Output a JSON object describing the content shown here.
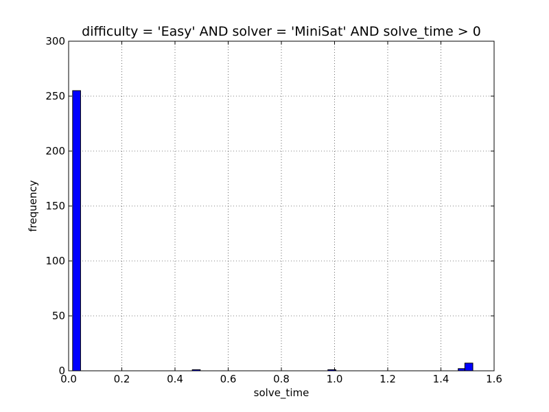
{
  "chart_data": {
    "type": "histogram",
    "title": "difficulty = 'Easy' AND solver = 'MiniSat' AND solve_time > 0",
    "xlabel": "solve_time",
    "ylabel": "frequency",
    "xlim": [
      0,
      1.6
    ],
    "ylim": [
      0,
      300
    ],
    "xticks": [
      "0.0",
      "0.2",
      "0.4",
      "0.6",
      "0.8",
      "1.0",
      "1.2",
      "1.4",
      "1.6"
    ],
    "yticks": [
      "0",
      "50",
      "100",
      "150",
      "200",
      "250",
      "300"
    ],
    "grid": true,
    "bar_color": "#0000ff",
    "bins": [
      {
        "x0": 0.015,
        "x1": 0.045,
        "count": 255
      },
      {
        "x0": 0.465,
        "x1": 0.495,
        "count": 1
      },
      {
        "x0": 0.975,
        "x1": 1.005,
        "count": 1
      },
      {
        "x0": 1.465,
        "x1": 1.49,
        "count": 2
      },
      {
        "x0": 1.49,
        "x1": 1.52,
        "count": 7
      }
    ]
  }
}
